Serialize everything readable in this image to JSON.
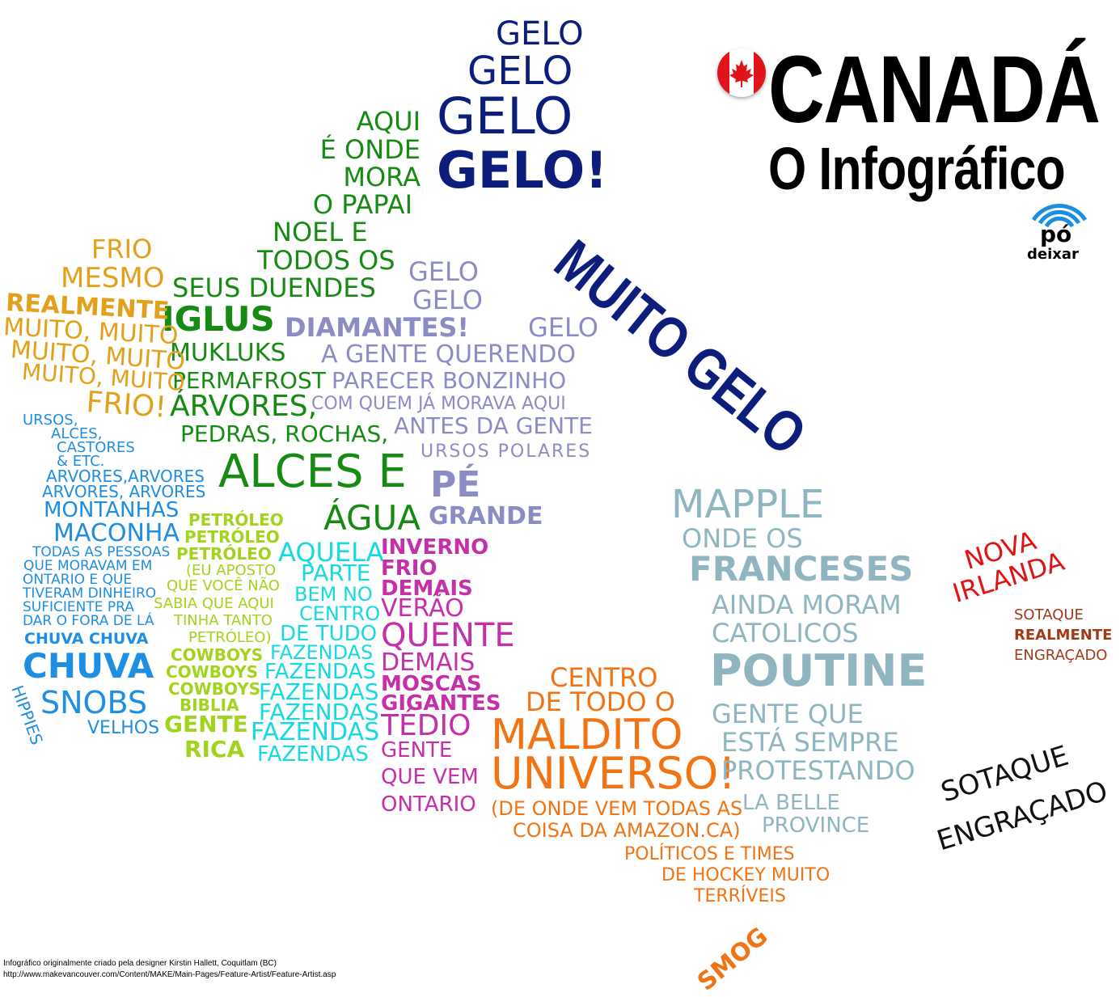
{
  "header": {
    "title": "CANADÁ",
    "subtitle": "O Infográfico",
    "logo_top": "pó",
    "logo_bottom": "deixar",
    "flag_icon": "canada-flag-icon"
  },
  "ice": {
    "gelo_1": "GELO",
    "gelo_2": "GELO",
    "gelo_3": "GELO",
    "gelo_4": "GELO!",
    "muito_gelo": "MUITO GELO"
  },
  "north": {
    "lines": [
      "AQUI",
      "É ONDE",
      "MORA",
      "O PAPAI",
      "NOEL E",
      "TODOS OS",
      "SEUS DUENDES"
    ],
    "iglus": "IGLUS",
    "mukluks": "MUKLUKS",
    "permafrost": "PERMAFROST",
    "arvores": "ÁRVORES,",
    "pedras": "PEDRAS, ROCHAS,",
    "alces": "ALCES E",
    "agua": "ÁGUA"
  },
  "lavender": {
    "gelo_a": "GELO",
    "gelo_b": "GELO",
    "diamantes": "DIAMANTES!",
    "gelo_c": "GELO",
    "gente_querendo": "A GENTE QUERENDO",
    "parecer": "PARECER  BONZINHO",
    "com_quem": "COM QUEM JÁ MORAVA AQUI",
    "antes": "ANTES DA GENTE",
    "ursos_polares": "URSOS POLARES",
    "pe": "PÉ",
    "grande": "GRANDE"
  },
  "west_cold": {
    "frio": "FRIO",
    "mesmo": "MESMO",
    "realmente": "REALMENTE",
    "muito1": "MUITO, MUITO",
    "muito2": "MUITO, MUITO",
    "muito3": "MUITO, MUITO",
    "frio2": "FRIO!"
  },
  "west": {
    "ursos": "URSOS,",
    "alces": "ALCES,",
    "castores": "CASTORES",
    "etc": "& ETC.",
    "arvores1": "ARVORES,ARVORES",
    "arvores2": "ARVORES, ARVORES",
    "montanhas": "MONTANHAS",
    "maconha": "MACONHA",
    "todas1": "TODAS AS PESSOAS",
    "todas2": "QUE MORAVAM EM",
    "todas3": "ONTARIO E QUE",
    "todas4": "TIVERAM DINHEIRO",
    "todas5": "SUFICIENTE PRA",
    "todas6": "DAR O FORA DE LÁ",
    "chuva_chuva": "CHUVA CHUVA",
    "chuva": "CHUVA",
    "snobs": "SNOBS",
    "velhos": "VELHOS",
    "hippies": "HIPPIES"
  },
  "prairie": {
    "petroleo1": "PETRÓLEO",
    "petroleo2": "PETRÓLEO",
    "petroleo3": "PETRÓLEO",
    "aposto1": "(EU APOSTO",
    "aposto2": "QUE VOCÊ NÃO",
    "aposto3": "SABIA QUE AQUI",
    "aposto4": "TINHA  TANTO",
    "aposto5": "PETRÓLEO)",
    "cowboys1": "COWBOYS",
    "cowboys2": "COWBOYS",
    "cowboys3": "COWBOYS",
    "biblia": "BIBLIA",
    "gente": "GENTE",
    "rica": "RICA"
  },
  "farms": {
    "aquela": "AQUELA",
    "parte": "PARTE",
    "bem_no": "BEM NO",
    "centro": "CENTRO",
    "de_tudo": "DE TUDO",
    "fazendas": [
      "FAZENDAS",
      "FAZENDAS",
      "FAZENDAS",
      "FAZENDAS",
      "FAZENDAS",
      "FAZENDAS"
    ]
  },
  "ontario_north": {
    "inverno": "INVERNO",
    "frio": "FRIO",
    "demais": "DEMAIS",
    "verao": "VERÃO",
    "quente": "QUENTE",
    "demais2": "DEMAIS",
    "moscas": "MOSCAS",
    "gigantes": "GIGANTES",
    "tedio": "TÉDIO",
    "gente": "GENTE",
    "que_vem": "QUE VEM",
    "ontario": "ONTARIO"
  },
  "ontario": {
    "centro": "CENTRO",
    "de_todo": "DE TODO O",
    "maldito": "MALDITO",
    "universo": "UNIVERSO!",
    "de_onde": "(DE ONDE VEM TODAS AS",
    "coisa": "COISA DA AMAZON.CA)",
    "politicos": "POLÍTICOS E TIMES",
    "hockey": "DE HOCKEY MUITO",
    "terriveis": "TERRÍVEIS",
    "smog": "SMOG"
  },
  "quebec": {
    "mapple": "MAPPLE",
    "onde_os": "ONDE OS",
    "franceses": "FRANCESES",
    "ainda": "AINDA MORAM",
    "catolicos": "CATOLICOS",
    "poutine": "POUTINE",
    "gente_que": "GENTE QUE",
    "esta": "ESTÁ SEMPRE",
    "protestando": "PROTESTANDO",
    "la_belle": "LA BELLE",
    "province": "PROVINCE"
  },
  "east": {
    "nova_irlanda": "NOVA\nIRLANDA",
    "sotaque1": "SOTAQUE",
    "realmente": "REALMENTE",
    "engracado1": "ENGRAÇADO",
    "sotaque2": "SOTAQUE",
    "engracado2": "ENGRAÇADO"
  },
  "credits": {
    "line1": "Infográfico originalmente criado pela designer Kirstin Hallett, Coquitlam (BC)",
    "line2": "http://www.makevancouver.com/Content/MAKE/Main-Pages/Feature-Artist/Feature-Artist.asp"
  },
  "colors": {
    "navy": "#0d1d7c",
    "green": "#178a14",
    "amber": "#e3a11b",
    "lavender": "#8c8cc4",
    "blue": "#1e8ee3",
    "lime": "#a2d31d",
    "cyan": "#17d9e0",
    "magenta": "#c52faa",
    "orange": "#f27314",
    "slate": "#8fb5c0",
    "red": "#e01414",
    "brown": "#a33a16"
  }
}
